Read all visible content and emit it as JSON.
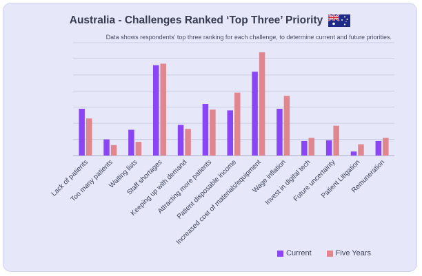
{
  "chart_data": {
    "type": "bar",
    "title": "Australia - Challenges Ranked ‘Top Three’ Priority",
    "subtitle": "Data shows respondents’ top three ranking for each challenge, to determine current and future priorities.",
    "categories": [
      "Lack of patients",
      "Too many patients",
      "Waiting lists",
      "Staff shortages",
      "Keeping up with demand",
      "Attracting more patients",
      "Patient disposable income",
      "Increased cost of materials/equipment",
      "Wage inflation",
      "Invest in digital tech",
      "Future uncertainty",
      "Patient Litigation",
      "Remuneration"
    ],
    "series": [
      {
        "name": "Current",
        "values": [
          29,
          10,
          16,
          56,
          19,
          32,
          28,
          52,
          29,
          9,
          9.5,
          2.5,
          9
        ]
      },
      {
        "name": "Five Years",
        "values": [
          23,
          6.5,
          8.5,
          57,
          16.5,
          28.5,
          39,
          64,
          37,
          11,
          18.5,
          7,
          11
        ]
      }
    ],
    "colors": {
      "Current": "#8a45f5",
      "Five Years": "#e0868f"
    },
    "ylim": [
      0,
      70
    ],
    "grid": true,
    "legend": "bottom-right",
    "flag_icon": "australia-flag-icon"
  }
}
